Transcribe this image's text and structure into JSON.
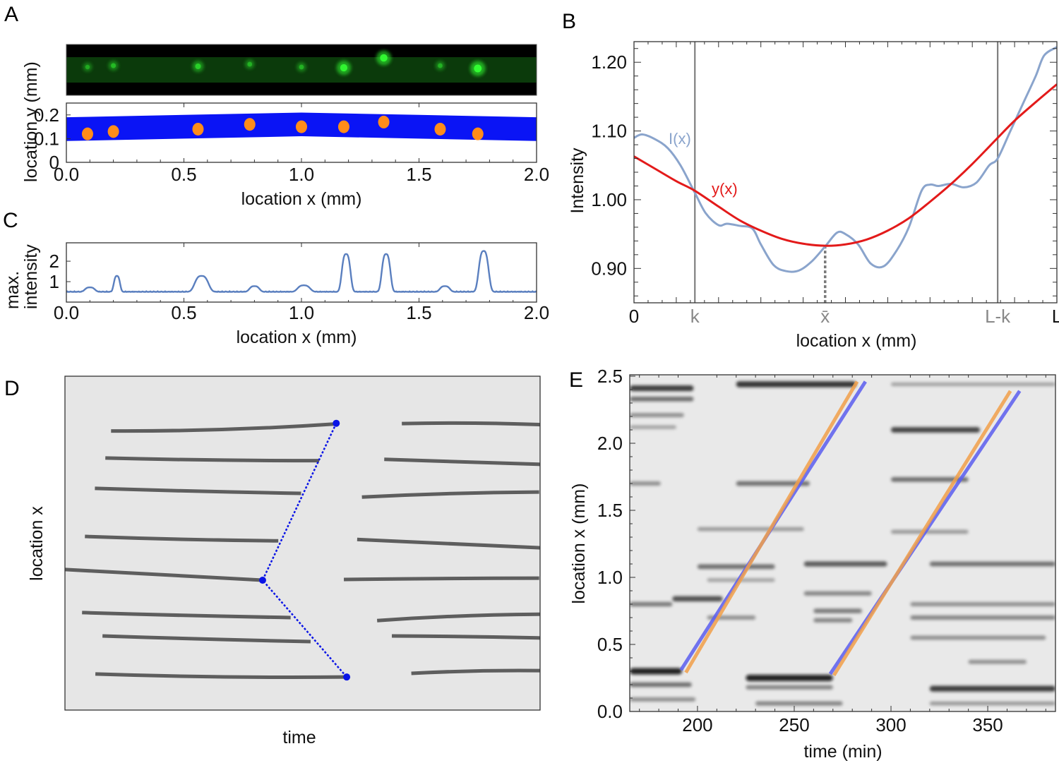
{
  "figure": {
    "panels": [
      "A",
      "B",
      "C",
      "D",
      "E"
    ]
  },
  "chart_data": [
    {
      "panel": "A",
      "type": "scatter",
      "title": "",
      "subplots": [
        {
          "kind": "fluorescence-image",
          "description": "green fluorescent channel with bright spots",
          "spots_x_mm": [
            0.09,
            0.2,
            0.56,
            0.78,
            1.0,
            1.18,
            1.35,
            1.59,
            1.75
          ],
          "spot_brightness": [
            0.25,
            0.35,
            0.5,
            0.3,
            0.3,
            0.85,
            0.9,
            0.3,
            0.95
          ],
          "colors": {
            "background": "#000000",
            "channel": "#0e3a0e",
            "spot": "#33ff33"
          }
        },
        {
          "kind": "segmentation",
          "xlabel": "location x (mm)",
          "ylabel": "location y (mm)",
          "xlim": [
            0.0,
            2.0
          ],
          "ylim": [
            0.0,
            0.25
          ],
          "xticks": [
            "0.0",
            "0.5",
            "1.0",
            "1.5",
            "2.0"
          ],
          "yticks": [
            "0",
            "0.1",
            "0.2"
          ],
          "ytick_values": [
            0,
            0.1,
            0.2
          ],
          "channel_band": {
            "x": [
              0.0,
              0.5,
              1.0,
              1.5,
              2.0
            ],
            "y_low": [
              0.09,
              0.1,
              0.11,
              0.1,
              0.09
            ],
            "y_high": [
              0.19,
              0.2,
              0.21,
              0.2,
              0.19
            ]
          },
          "points": [
            {
              "x": 0.09,
              "y": 0.12
            },
            {
              "x": 0.2,
              "y": 0.13
            },
            {
              "x": 0.56,
              "y": 0.14
            },
            {
              "x": 0.78,
              "y": 0.16
            },
            {
              "x": 1.0,
              "y": 0.15
            },
            {
              "x": 1.18,
              "y": 0.15
            },
            {
              "x": 1.35,
              "y": 0.17
            },
            {
              "x": 1.59,
              "y": 0.14
            },
            {
              "x": 1.75,
              "y": 0.12
            }
          ],
          "colors": {
            "band": "#0a14f5",
            "points": "#ff8c1a"
          }
        }
      ]
    },
    {
      "panel": "B",
      "type": "line",
      "title": "",
      "xlabel": "location x (mm)",
      "ylabel": "Intensity",
      "xlim": [
        0,
        1
      ],
      "ylim": [
        0.85,
        1.23
      ],
      "yticks": [
        "0.90",
        "1.00",
        "1.10",
        "1.20"
      ],
      "ytick_values": [
        0.9,
        1.0,
        1.1,
        1.2
      ],
      "xtick_labels": [
        {
          "label": "0",
          "x": 0.0,
          "color": "#111111"
        },
        {
          "label": "k",
          "x": 0.144,
          "color": "#888888"
        },
        {
          "label": "x̄",
          "x": 0.452,
          "color": "#888888"
        },
        {
          "label": "L-k",
          "x": 0.86,
          "color": "#888888"
        },
        {
          "label": "L",
          "x": 1.0,
          "color": "#111111"
        }
      ],
      "vlines": [
        0.144,
        0.86
      ],
      "min_marker": {
        "x": 0.452,
        "y": 0.933
      },
      "series": [
        {
          "name": "I(x)",
          "color": "#8aa4cc",
          "x": [
            0.0,
            0.02,
            0.05,
            0.08,
            0.11,
            0.144,
            0.17,
            0.2,
            0.22,
            0.25,
            0.28,
            0.3,
            0.33,
            0.36,
            0.39,
            0.42,
            0.452,
            0.48,
            0.5,
            0.53,
            0.56,
            0.59,
            0.62,
            0.65,
            0.68,
            0.7,
            0.72,
            0.75,
            0.78,
            0.81,
            0.84,
            0.86,
            0.89,
            0.92,
            0.95,
            0.97,
            1.0
          ],
          "y": [
            1.09,
            1.095,
            1.088,
            1.075,
            1.05,
            1.01,
            0.98,
            0.963,
            0.965,
            0.962,
            0.958,
            0.935,
            0.905,
            0.896,
            0.897,
            0.91,
            0.932,
            0.952,
            0.95,
            0.935,
            0.907,
            0.903,
            0.925,
            0.96,
            1.013,
            1.022,
            1.02,
            1.023,
            1.018,
            1.025,
            1.05,
            1.06,
            1.1,
            1.14,
            1.18,
            1.21,
            1.222
          ]
        },
        {
          "name": "y(x)",
          "color": "#e31a1a",
          "x": [
            0.0,
            0.05,
            0.1,
            0.144,
            0.2,
            0.25,
            0.3,
            0.35,
            0.4,
            0.452,
            0.5,
            0.55,
            0.6,
            0.65,
            0.7,
            0.75,
            0.8,
            0.86,
            0.9,
            0.95,
            1.0
          ],
          "y": [
            1.063,
            1.045,
            1.027,
            1.013,
            0.99,
            0.97,
            0.955,
            0.943,
            0.936,
            0.933,
            0.935,
            0.942,
            0.955,
            0.973,
            0.997,
            1.023,
            1.052,
            1.09,
            1.115,
            1.142,
            1.168
          ]
        }
      ],
      "annotations": [
        {
          "text": "I(x)",
          "x": 0.08,
          "y": 1.095,
          "color": "#8aa4cc"
        },
        {
          "text": "y(x)",
          "x": 0.185,
          "y": 1.013,
          "color": "#e31a1a"
        }
      ]
    },
    {
      "panel": "C",
      "type": "line",
      "title": "",
      "xlabel": "location x (mm)",
      "ylabel": "max. intensity",
      "xlim": [
        0.0,
        2.0
      ],
      "ylim": [
        0,
        2.9
      ],
      "xticks": [
        "0.0",
        "0.5",
        "1.0",
        "1.5",
        "2.0"
      ],
      "yticks": [
        "1",
        "2"
      ],
      "ytick_values": [
        1,
        2
      ],
      "baseline": 0.5,
      "peaks": [
        {
          "x": 0.1,
          "height": 0.72,
          "width": 0.04
        },
        {
          "x": 0.215,
          "height": 1.28,
          "width": 0.025
        },
        {
          "x": 0.575,
          "height": 1.28,
          "width": 0.055
        },
        {
          "x": 0.8,
          "height": 0.78,
          "width": 0.04
        },
        {
          "x": 1.01,
          "height": 0.82,
          "width": 0.05
        },
        {
          "x": 1.19,
          "height": 2.35,
          "width": 0.035
        },
        {
          "x": 1.36,
          "height": 2.35,
          "width": 0.035
        },
        {
          "x": 1.61,
          "height": 0.78,
          "width": 0.04
        },
        {
          "x": 1.775,
          "height": 2.5,
          "width": 0.04
        }
      ],
      "series": [
        {
          "name": "max. intensity",
          "color": "#5a7fbf"
        }
      ]
    },
    {
      "panel": "D",
      "type": "line",
      "title": "",
      "xlabel": "time",
      "ylabel": "location x",
      "xlim": [
        0,
        1
      ],
      "ylim": [
        0,
        1
      ],
      "background": "#e6e6e6",
      "tracks_before": [
        {
          "t": [
            0.097,
            0.57
          ],
          "x": [
            0.836,
            0.857
          ],
          "bend": 0.012
        },
        {
          "t": [
            0.085,
            0.535
          ],
          "x": [
            0.755,
            0.747
          ],
          "bend": 0.004
        },
        {
          "t": [
            0.063,
            0.497
          ],
          "x": [
            0.664,
            0.649
          ],
          "bend": 0.002
        },
        {
          "t": [
            0.042,
            0.449
          ],
          "x": [
            0.52,
            0.507
          ],
          "bend": 0.004
        },
        {
          "t": [
            0.0,
            0.416
          ],
          "x": [
            0.421,
            0.389
          ],
          "bend": 0.0
        },
        {
          "t": [
            0.036,
            0.475
          ],
          "x": [
            0.292,
            0.277
          ],
          "bend": 0.002
        },
        {
          "t": [
            0.079,
            0.517
          ],
          "x": [
            0.222,
            0.205
          ],
          "bend": 0.002
        },
        {
          "t": [
            0.064,
            0.593
          ],
          "x": [
            0.108,
            0.099
          ],
          "bend": 0.008
        }
      ],
      "tracks_after": [
        {
          "t": [
            0.709,
            1.0
          ],
          "x": [
            0.858,
            0.855
          ],
          "bend": -0.006
        },
        {
          "t": [
            0.672,
            1.0
          ],
          "x": [
            0.751,
            0.736
          ],
          "bend": 0.0
        },
        {
          "t": [
            0.625,
            0.998
          ],
          "x": [
            0.638,
            0.653
          ],
          "bend": -0.006
        },
        {
          "t": [
            0.615,
            1.0
          ],
          "x": [
            0.511,
            0.486
          ],
          "bend": 0.0
        },
        {
          "t": [
            0.587,
            0.998
          ],
          "x": [
            0.391,
            0.395
          ],
          "bend": -0.002
        },
        {
          "t": [
            0.657,
            1.0
          ],
          "x": [
            0.268,
            0.287
          ],
          "bend": -0.008
        },
        {
          "t": [
            0.688,
            1.0
          ],
          "x": [
            0.222,
            0.216
          ],
          "bend": -0.002
        },
        {
          "t": [
            0.729,
            1.0
          ],
          "x": [
            0.11,
            0.118
          ],
          "bend": -0.006
        }
      ],
      "front_points": [
        {
          "t": 0.571,
          "x": 0.859
        },
        {
          "t": 0.416,
          "x": 0.389
        },
        {
          "t": 0.593,
          "x": 0.099
        }
      ],
      "colors": {
        "tracks": "#5e5e5e",
        "front": "#0a14e6"
      }
    },
    {
      "panel": "E",
      "type": "heatmap",
      "title": "",
      "xlabel": "time (min)",
      "ylabel": "location x (mm)",
      "xlim": [
        165,
        385
      ],
      "ylim": [
        0.0,
        2.5
      ],
      "xticks": [
        "200",
        "250",
        "300",
        "350"
      ],
      "xtick_values": [
        200,
        250,
        300,
        350
      ],
      "yticks": [
        "0.0",
        "0.5",
        "1.0",
        "1.5",
        "2.0",
        "2.5"
      ],
      "ytick_values": [
        0.0,
        0.5,
        1.0,
        1.5,
        2.0,
        2.5
      ],
      "kymograph_streaks": [
        {
          "t": [
            165,
            198
          ],
          "x": 2.41,
          "darkness": 0.85
        },
        {
          "t": [
            165,
            198
          ],
          "x": 2.33,
          "darkness": 0.6
        },
        {
          "t": [
            165,
            193
          ],
          "x": 2.21,
          "darkness": 0.45
        },
        {
          "t": [
            165,
            189
          ],
          "x": 2.12,
          "darkness": 0.35
        },
        {
          "t": [
            165,
            181
          ],
          "x": 1.7,
          "darkness": 0.45
        },
        {
          "t": [
            165,
            187
          ],
          "x": 0.8,
          "darkness": 0.55
        },
        {
          "t": [
            187,
            213
          ],
          "x": 0.84,
          "darkness": 0.75
        },
        {
          "t": [
            165,
            192
          ],
          "x": 0.3,
          "darkness": 1.0
        },
        {
          "t": [
            165,
            197
          ],
          "x": 0.2,
          "darkness": 0.6
        },
        {
          "t": [
            165,
            199
          ],
          "x": 0.09,
          "darkness": 0.45
        },
        {
          "t": [
            220,
            282
          ],
          "x": 2.44,
          "darkness": 0.9
        },
        {
          "t": [
            220,
            258
          ],
          "x": 1.7,
          "darkness": 0.6
        },
        {
          "t": [
            200,
            255
          ],
          "x": 1.36,
          "darkness": 0.4
        },
        {
          "t": [
            200,
            240
          ],
          "x": 1.08,
          "darkness": 0.6
        },
        {
          "t": [
            205,
            240
          ],
          "x": 0.98,
          "darkness": 0.35
        },
        {
          "t": [
            205,
            230
          ],
          "x": 0.7,
          "darkness": 0.45
        },
        {
          "t": [
            225,
            270
          ],
          "x": 0.25,
          "darkness": 1.0
        },
        {
          "t": [
            225,
            270
          ],
          "x": 0.18,
          "darkness": 0.5
        },
        {
          "t": [
            230,
            275
          ],
          "x": 0.06,
          "darkness": 0.5
        },
        {
          "t": [
            255,
            298
          ],
          "x": 1.1,
          "darkness": 0.7
        },
        {
          "t": [
            255,
            290
          ],
          "x": 0.88,
          "darkness": 0.5
        },
        {
          "t": [
            260,
            285
          ],
          "x": 0.75,
          "darkness": 0.55
        },
        {
          "t": [
            260,
            280
          ],
          "x": 0.68,
          "darkness": 0.5
        },
        {
          "t": [
            300,
            346
          ],
          "x": 2.1,
          "darkness": 0.8
        },
        {
          "t": [
            300,
            340
          ],
          "x": 1.73,
          "darkness": 0.6
        },
        {
          "t": [
            300,
            340
          ],
          "x": 1.34,
          "darkness": 0.4
        },
        {
          "t": [
            320,
            385
          ],
          "x": 1.1,
          "darkness": 0.6
        },
        {
          "t": [
            310,
            385
          ],
          "x": 0.8,
          "darkness": 0.45
        },
        {
          "t": [
            310,
            385
          ],
          "x": 0.7,
          "darkness": 0.5
        },
        {
          "t": [
            310,
            380
          ],
          "x": 0.55,
          "darkness": 0.45
        },
        {
          "t": [
            340,
            370
          ],
          "x": 0.37,
          "darkness": 0.45
        },
        {
          "t": [
            320,
            385
          ],
          "x": 0.17,
          "darkness": 0.85
        },
        {
          "t": [
            320,
            385
          ],
          "x": 0.06,
          "darkness": 0.4
        },
        {
          "t": [
            300,
            385
          ],
          "x": 2.44,
          "darkness": 0.35
        }
      ],
      "series": [
        {
          "name": "front-1-blue",
          "color": "#5b5ef0",
          "t": [
            191.5,
            286.8
          ],
          "x": [
            0.31,
            2.46
          ]
        },
        {
          "name": "front-1-orange",
          "color": "#f2a04a",
          "t": [
            194.0,
            282.5
          ],
          "x": [
            0.29,
            2.46
          ]
        },
        {
          "name": "front-2-blue",
          "color": "#5b5ef0",
          "t": [
            268.6,
            366.5
          ],
          "x": [
            0.28,
            2.39
          ]
        },
        {
          "name": "front-2-orange",
          "color": "#f2a04a",
          "t": [
            270.5,
            361.7
          ],
          "x": [
            0.27,
            2.39
          ]
        }
      ]
    }
  ]
}
